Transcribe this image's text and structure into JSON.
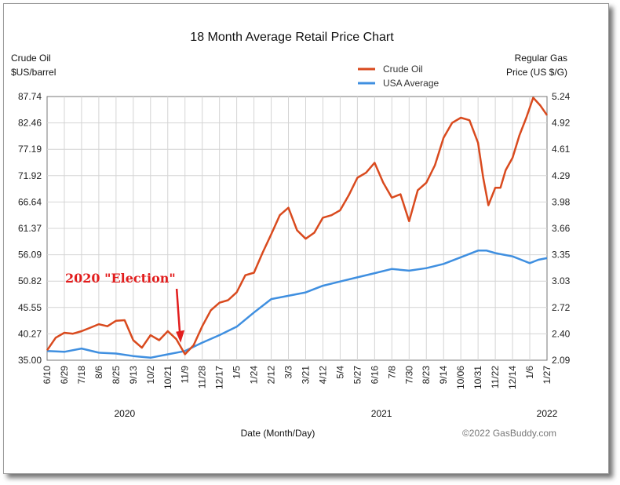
{
  "chart_data": {
    "type": "line",
    "title": "18 Month Average Retail Price Chart",
    "y_left_label": [
      "Crude Oil",
      "$US/barrel"
    ],
    "y_right_label": [
      "Regular Gas",
      "Price (US $/G)"
    ],
    "xlabel": "Date (Month/Day)",
    "copyright": "©2022 GasBuddy.com",
    "left_ticks": [
      "87.74",
      "82.46",
      "77.19",
      "71.92",
      "66.64",
      "61.37",
      "56.09",
      "50.82",
      "45.55",
      "40.27",
      "35.00"
    ],
    "right_ticks": [
      "5.24",
      "4.92",
      "4.61",
      "4.29",
      "3.98",
      "3.66",
      "3.35",
      "3.03",
      "2.72",
      "2.40",
      "2.09"
    ],
    "ylim_left": [
      35.0,
      87.74
    ],
    "ylim_right": [
      2.09,
      5.24
    ],
    "x_ticks": [
      "6/10",
      "6/29",
      "7/18",
      "8/6",
      "8/25",
      "9/13",
      "10/2",
      "10/21",
      "11/9",
      "11/28",
      "12/17",
      "1/5",
      "1/24",
      "2/12",
      "3/3",
      "3/21",
      "4/12",
      "5/4",
      "5/27",
      "6/16",
      "7/8",
      "7/30",
      "8/23",
      "9/14",
      "10/06",
      "10/31",
      "11/22",
      "12/14",
      "1/6",
      "1/27"
    ],
    "years": [
      {
        "label": "2020",
        "at_tick": 4.5
      },
      {
        "label": "2021",
        "at_tick": 19.4
      },
      {
        "label": "2022",
        "at_tick": 29
      }
    ],
    "grid": true,
    "legend_position": "top-right",
    "series": [
      {
        "name": "Crude Oil",
        "axis": "left",
        "color": "#d94a1e",
        "x": [
          0,
          0.5,
          1,
          1.5,
          2,
          2.5,
          3,
          3.5,
          4,
          4.5,
          5,
          5.5,
          6,
          6.5,
          7,
          7.5,
          8,
          8.5,
          9,
          9.5,
          10,
          10.5,
          11,
          11.5,
          12,
          12.5,
          13,
          13.5,
          14,
          14.5,
          15,
          15.5,
          16,
          16.5,
          17,
          17.5,
          18,
          18.5,
          19,
          19.5,
          20,
          20.5,
          21,
          21.5,
          22,
          22.5,
          23,
          23.5,
          24,
          24.5,
          25,
          25.3,
          25.6,
          26,
          26.3,
          26.6,
          27,
          27.4,
          27.8,
          28.2,
          28.6,
          29
        ],
        "values": [
          37.0,
          39.5,
          40.5,
          40.3,
          40.8,
          41.5,
          42.2,
          41.8,
          42.9,
          43.0,
          39.0,
          37.5,
          40.0,
          39.0,
          40.8,
          39.2,
          36.2,
          38.0,
          41.8,
          45.0,
          46.5,
          47.0,
          48.6,
          52.0,
          52.5,
          56.5,
          60.2,
          64.0,
          65.5,
          61.0,
          59.3,
          60.5,
          63.5,
          64.0,
          65.0,
          68.0,
          71.5,
          72.5,
          74.5,
          70.5,
          67.5,
          68.2,
          62.8,
          69.0,
          70.5,
          74.0,
          79.5,
          82.5,
          83.5,
          83.0,
          78.5,
          71.5,
          66.0,
          69.5,
          69.5,
          73.0,
          75.5,
          80.0,
          83.5,
          87.5,
          86.0,
          84.0
        ]
      },
      {
        "name": "USA Average",
        "axis": "right",
        "color": "#3f8fe0",
        "x": [
          0,
          1,
          2,
          3,
          4,
          5,
          6,
          7,
          8,
          9,
          10,
          11,
          12,
          13,
          14,
          15,
          16,
          17,
          18,
          19,
          20,
          21,
          22,
          23,
          24,
          25,
          25.5,
          26,
          26.5,
          27,
          27.5,
          28,
          28.5,
          29
        ],
        "values": [
          2.2,
          2.19,
          2.23,
          2.18,
          2.17,
          2.14,
          2.12,
          2.16,
          2.2,
          2.3,
          2.39,
          2.49,
          2.66,
          2.82,
          2.86,
          2.9,
          2.98,
          3.03,
          3.08,
          3.13,
          3.18,
          3.16,
          3.19,
          3.24,
          3.32,
          3.4,
          3.4,
          3.37,
          3.35,
          3.33,
          3.29,
          3.25,
          3.29,
          3.31
        ]
      }
    ],
    "annotation": {
      "text": "2020 \"Election\"",
      "arrow_at_tick": 7.7,
      "arrow_value": 38.5
    }
  }
}
